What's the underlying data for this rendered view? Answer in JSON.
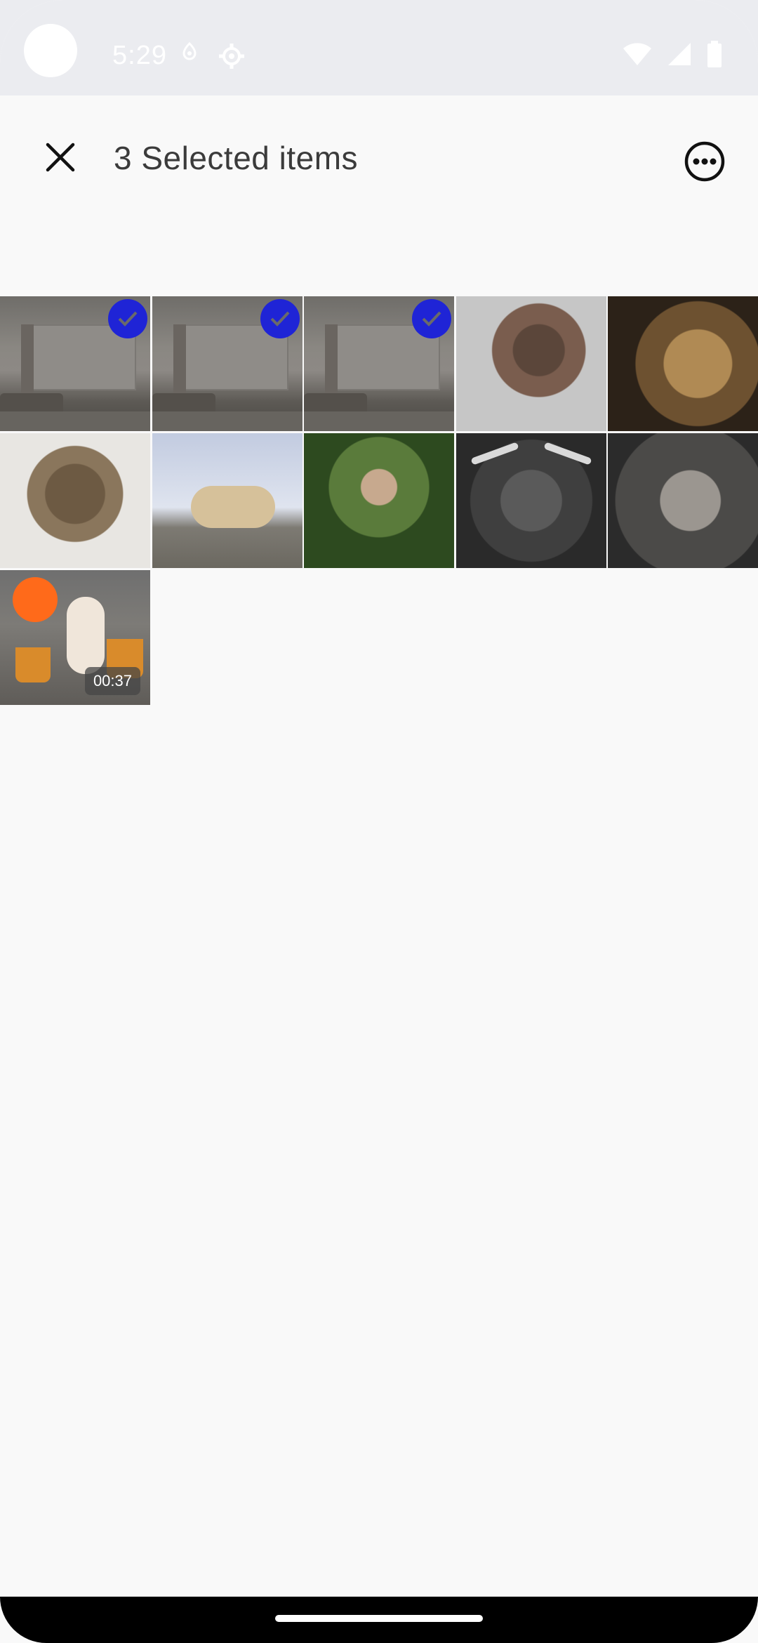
{
  "status_bar": {
    "time": "5:29",
    "icons": [
      "camera-dot",
      "location-icon",
      "settings-icon",
      "wifi-icon",
      "cellular-icon",
      "battery-icon"
    ]
  },
  "app_bar": {
    "title": "3 Selected items",
    "close_icon": "close-icon",
    "more_icon": "more-options-icon"
  },
  "grid": {
    "items": [
      {
        "kind": "room-photo",
        "selected": true
      },
      {
        "kind": "room-photo",
        "selected": true
      },
      {
        "kind": "room-photo",
        "selected": true
      },
      {
        "kind": "sphynx-cat-photo",
        "selected": false
      },
      {
        "kind": "lion-photo",
        "selected": false
      },
      {
        "kind": "tabby-cat-photo",
        "selected": false
      },
      {
        "kind": "polar-bear-photo",
        "selected": false
      },
      {
        "kind": "monkey-photo",
        "selected": false
      },
      {
        "kind": "highland-cow-photo",
        "selected": false
      },
      {
        "kind": "elephant-photo",
        "selected": false
      },
      {
        "kind": "dancing-toy-video",
        "selected": false,
        "duration": "00:37"
      }
    ]
  },
  "colors": {
    "selection": "#1f24d6",
    "background": "#f9f9f9",
    "status_bar": "#ebecf0"
  }
}
